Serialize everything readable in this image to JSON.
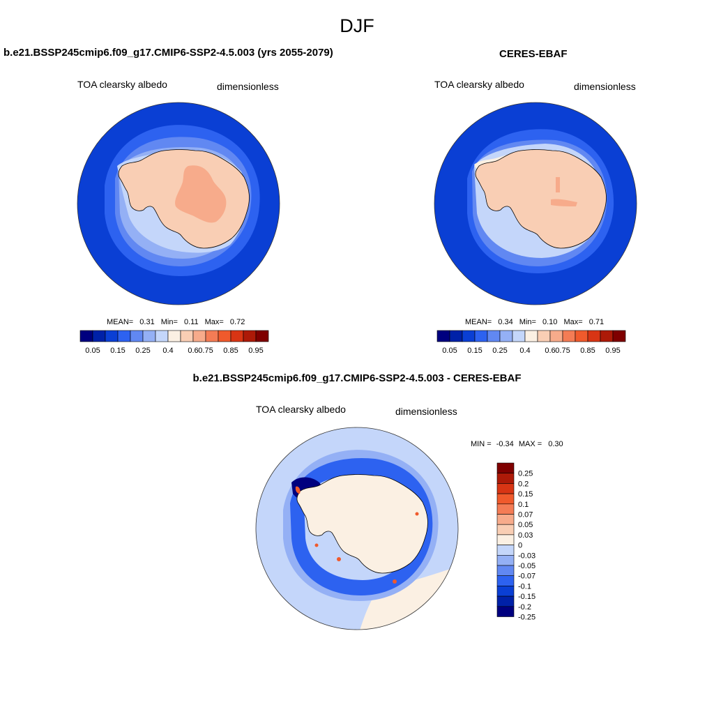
{
  "title": "DJF",
  "panels": [
    {
      "id": "model",
      "title": "b.e21.BSSP245cmip6.f09_g17.CMIP6-SSP2-4.5.003 (yrs 2055-2079)",
      "variable": "TOA clearsky albedo",
      "units": "dimensionless",
      "stats": {
        "mean_label": "MEAN=",
        "mean": "0.31",
        "min_label": "Min=",
        "min": "0.11",
        "max_label": "Max=",
        "max": "0.72"
      }
    },
    {
      "id": "obs",
      "title": "CERES-EBAF",
      "variable": "TOA clearsky albedo",
      "units": "dimensionless",
      "stats": {
        "mean_label": "MEAN=",
        "mean": "0.34",
        "min_label": "Min=",
        "min": "0.10",
        "max_label": "Max=",
        "max": "0.71"
      }
    },
    {
      "id": "diff",
      "title": "b.e21.BSSP245cmip6.f09_g17.CMIP6-SSP2-4.5.003 - CERES-EBAF",
      "variable": "TOA clearsky albedo",
      "units": "dimensionless",
      "stats": {
        "min_label": "MIN =",
        "min": "-0.34",
        "max_label": "MAX =",
        "max": "0.30"
      }
    }
  ],
  "colorbar_abs": {
    "colors": [
      "#00007f",
      "#0021a8",
      "#0a3fd4",
      "#2d62f0",
      "#6188f2",
      "#94b0f5",
      "#c4d6fa",
      "#fbf0e3",
      "#f9ceb4",
      "#f7ab8b",
      "#f47c55",
      "#f05a2c",
      "#d83514",
      "#ad1a08",
      "#7f0000"
    ],
    "labels": [
      "0.05",
      "0.15",
      "0.25",
      "0.4",
      "0.6",
      "0.75",
      "0.85",
      "0.95"
    ]
  },
  "colorbar_diff": {
    "colors": [
      "#7f0000",
      "#ad1a08",
      "#d83514",
      "#f05a2c",
      "#f47c55",
      "#f7ab8b",
      "#f9ceb4",
      "#fbf0e3",
      "#c4d6fa",
      "#94b0f5",
      "#6188f2",
      "#2d62f0",
      "#0a3fd4",
      "#0021a8",
      "#00007f"
    ],
    "labels": [
      "0.25",
      "0.2",
      "0.15",
      "0.1",
      "0.07",
      "0.05",
      "0.03",
      "0",
      "-0.03",
      "-0.05",
      "-0.07",
      "-0.1",
      "-0.15",
      "-0.2",
      "-0.25"
    ]
  },
  "map_colors": {
    "ocean_deep": "#0a3fd4",
    "ocean_mid": "#2d62f0",
    "sea_ice_1": "#6188f2",
    "sea_ice_2": "#94b0f5",
    "sea_ice_3": "#c4d6fa",
    "ice_pale": "#fbf0e3",
    "ice_sheet": "#f9ceb4",
    "ice_plateau": "#f7ab8b",
    "diff_background": "#c4d6fa",
    "diff_zero": "#fbf0e3",
    "diff_neg_1": "#94b0f5",
    "diff_neg_2": "#2d62f0",
    "diff_neg_3": "#00007f",
    "diff_pos": "#f05a2c",
    "coastline": "#000000"
  }
}
